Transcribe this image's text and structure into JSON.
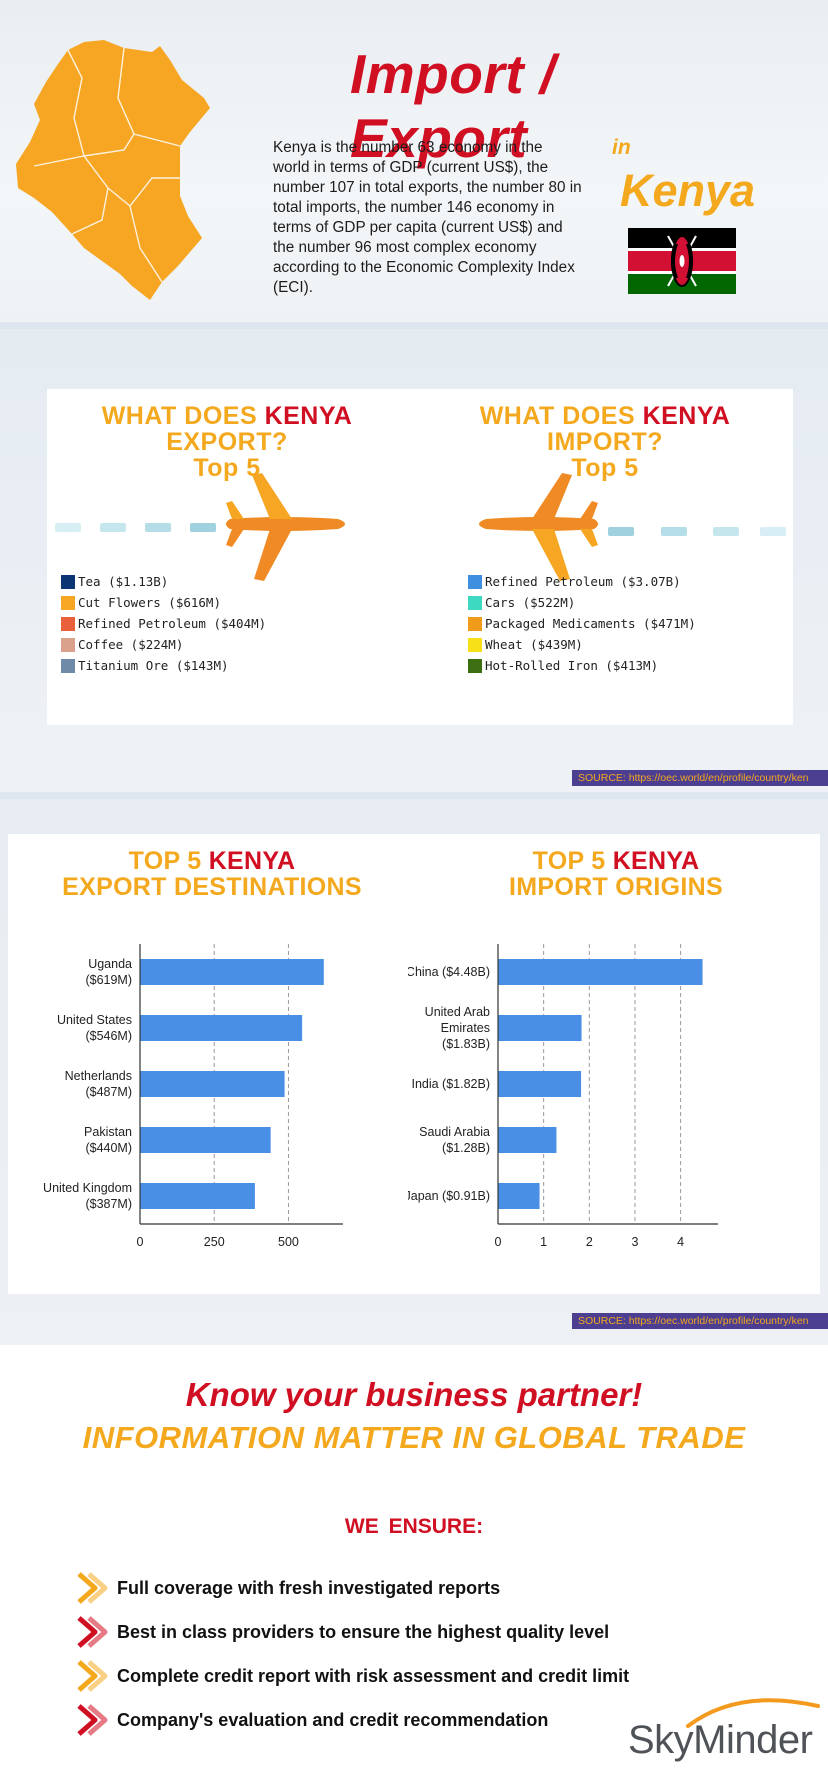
{
  "header": {
    "title": "Import / Export",
    "intro": "Kenya is the number 63 economy in the world in terms of GDP (current US$), the number 107 in total exports, the number 80 in total imports, the number 146 economy in terms of GDP per capita (current US$) and the number 96 most complex economy according to the Economic Complexity Index (ECI).",
    "in_word": "in",
    "country": "Kenya",
    "map_color": "#f6a623",
    "flag_colors": {
      "black": "#000000",
      "red": "#d21034",
      "green": "#006600",
      "white": "#ffffff"
    }
  },
  "export_panel": {
    "title_pre": "WHAT DOES ",
    "title_red": "KENYA",
    "title_line2": "EXPORT?",
    "title_line3": "Top 5",
    "legend": [
      {
        "label": "Tea ($1.13B)",
        "color": "#0a3572"
      },
      {
        "label": "Cut Flowers ($616M)",
        "color": "#f6a623"
      },
      {
        "label": "Refined Petroleum ($404M)",
        "color": "#e8603c"
      },
      {
        "label": "Coffee ($224M)",
        "color": "#d9a08c"
      },
      {
        "label": "Titanium Ore ($143M)",
        "color": "#6f8aa6"
      }
    ]
  },
  "import_panel": {
    "title_pre": "WHAT DOES ",
    "title_red": "KENYA",
    "title_line2": "IMPORT?",
    "title_line3": "Top 5",
    "legend": [
      {
        "label": "Refined Petroleum ($3.07B)",
        "color": "#3f8fe0"
      },
      {
        "label": "Cars ($522M)",
        "color": "#3ed9c1"
      },
      {
        "label": "Packaged Medicaments ($471M)",
        "color": "#f09c1a"
      },
      {
        "label": "Wheat ($439M)",
        "color": "#f7e017"
      },
      {
        "label": "Hot-Rolled Iron ($413M)",
        "color": "#3c6e12"
      }
    ]
  },
  "source_text": "SOURCE: https://oec.world/en/profile/country/ken",
  "chart_data": [
    {
      "type": "bar",
      "orientation": "horizontal",
      "title_pre": "TOP 5 ",
      "title_red": "KENYA",
      "title_line2": "EXPORT DESTINATIONS",
      "categories": [
        [
          "Uganda",
          "($619M)"
        ],
        [
          "United States",
          "($546M)"
        ],
        [
          "Netherlands",
          "($487M)"
        ],
        [
          "Pakistan",
          "($440M)"
        ],
        [
          "United Kingdom",
          "($387M)"
        ]
      ],
      "values": [
        619,
        546,
        487,
        440,
        387
      ],
      "xticks": [
        0,
        250,
        500
      ],
      "xlim": [
        0,
        650
      ],
      "bar_color": "#4a8fe6",
      "grid": "vertical dashed"
    },
    {
      "type": "bar",
      "orientation": "horizontal",
      "title_pre": "TOP 5 ",
      "title_red": "KENYA",
      "title_line2": "IMPORT ORIGINS",
      "categories": [
        [
          "China ($4.48B)"
        ],
        [
          "United Arab",
          "Emirates",
          "($1.83B)"
        ],
        [
          "India ($1.82B)"
        ],
        [
          "Saudi Arabia",
          "($1.28B)"
        ],
        [
          "Japan ($0.91B)"
        ]
      ],
      "values": [
        4.48,
        1.83,
        1.82,
        1.28,
        0.91
      ],
      "xticks": [
        0,
        1,
        2,
        3,
        4
      ],
      "xlim": [
        0,
        4.6
      ],
      "bar_color": "#4a8fe6",
      "grid": "vertical dashed"
    }
  ],
  "footer": {
    "tagline1": "Know your business partner!",
    "tagline2": "INFORMATION MATTER IN GLOBAL TRADE",
    "ensure_title": "WE ENSURE:",
    "items": [
      {
        "text": "Full coverage with fresh investigated reports",
        "icon": "chevron-right-icon",
        "color": "#f4a81d"
      },
      {
        "text": "Best in class providers to ensure the highest quality level",
        "icon": "chevron-right-icon",
        "color": "#d10f22"
      },
      {
        "text": "Complete credit report with risk assessment and credit limit",
        "icon": "chevron-right-icon",
        "color": "#f4a81d"
      },
      {
        "text": "Company's evaluation and credit recommendation",
        "icon": "chevron-right-icon",
        "color": "#d10f22"
      }
    ],
    "logo_text": "SkyMinder"
  }
}
